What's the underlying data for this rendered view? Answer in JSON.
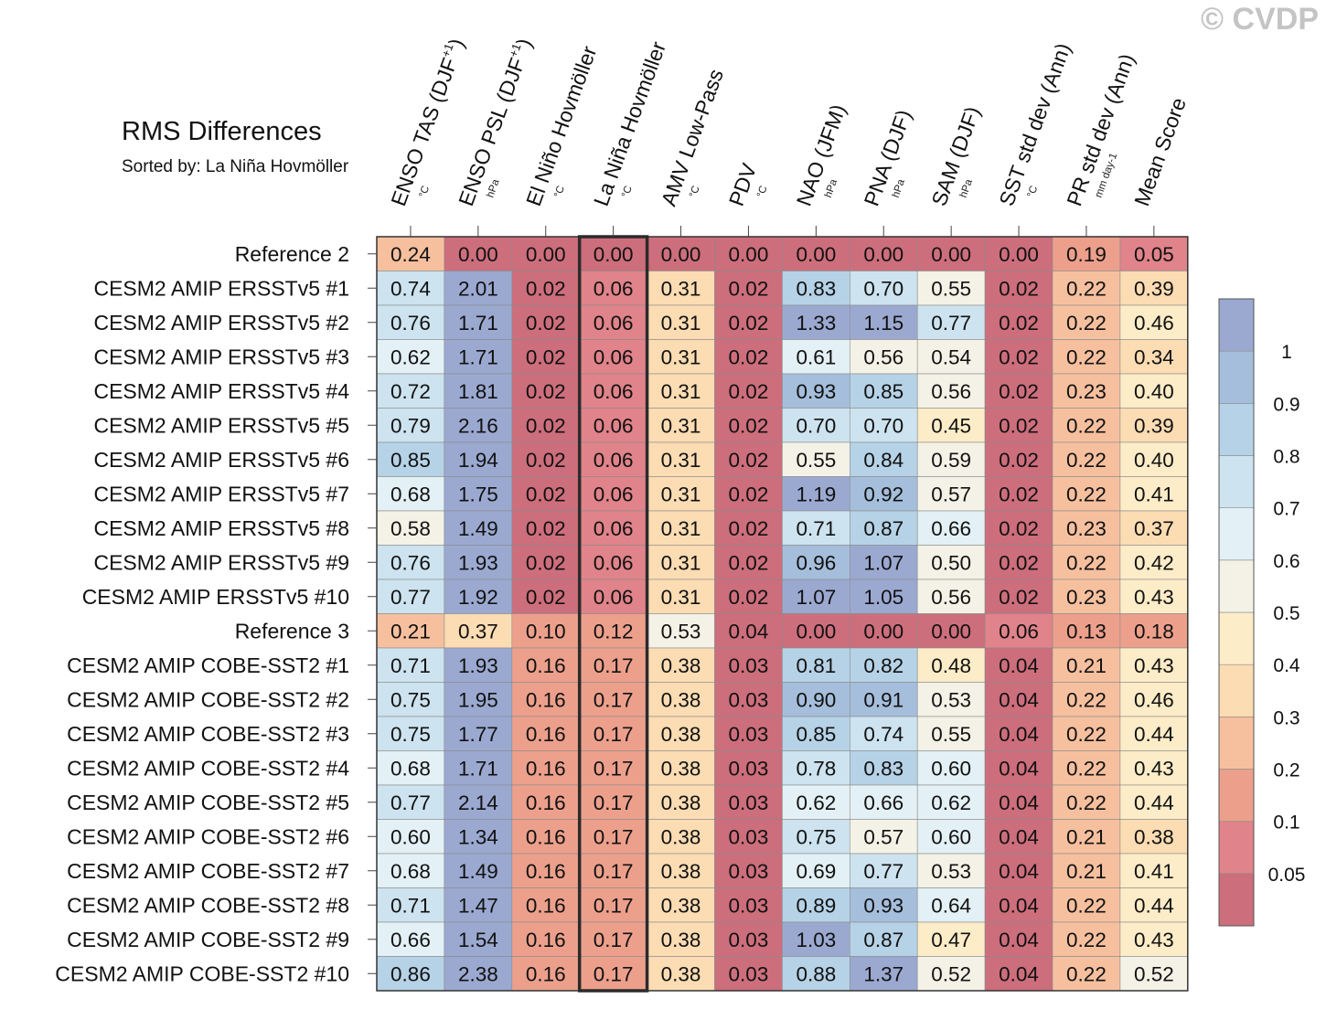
{
  "watermark": "© CVDP",
  "chart_data": {
    "type": "heatmap",
    "title": "RMS Differences",
    "subtitle": "Sorted by: La Niña Hovmöller",
    "highlight_column": 3,
    "columns": [
      {
        "label": "ENSO TAS (DJF",
        "sup": "+1",
        "close": ")",
        "unit": "°C"
      },
      {
        "label": "ENSO PSL (DJF",
        "sup": "+1",
        "close": ")",
        "unit": "hPa"
      },
      {
        "label": "El Niño Hovmöller",
        "sup": "",
        "close": "",
        "unit": "°C"
      },
      {
        "label": "La Niña Hovmöller",
        "sup": "",
        "close": "",
        "unit": "°C"
      },
      {
        "label": "AMV Low-Pass",
        "sup": "",
        "close": "",
        "unit": "°C"
      },
      {
        "label": "PDV",
        "sup": "",
        "close": "",
        "unit": "°C"
      },
      {
        "label": "NAO (JFM)",
        "sup": "",
        "close": "",
        "unit": "hPa"
      },
      {
        "label": "PNA (DJF)",
        "sup": "",
        "close": "",
        "unit": "hPa"
      },
      {
        "label": "SAM (DJF)",
        "sup": "",
        "close": "",
        "unit": "hPa"
      },
      {
        "label": "SST std dev (Ann)",
        "sup": "",
        "close": "",
        "unit": "°C"
      },
      {
        "label": "PR std dev (Ann)",
        "sup": "",
        "close": "",
        "unit": "mm day-1"
      },
      {
        "label": "Mean Score",
        "sup": "",
        "close": "",
        "unit": ""
      }
    ],
    "rows": [
      {
        "label": "Reference 2",
        "values": [
          "0.24",
          "0.00",
          "0.00",
          "0.00",
          "0.00",
          "0.00",
          "0.00",
          "0.00",
          "0.00",
          "0.00",
          "0.19",
          "0.05"
        ]
      },
      {
        "label": "CESM2 AMIP ERSSTv5 #1",
        "values": [
          "0.74",
          "2.01",
          "0.02",
          "0.06",
          "0.31",
          "0.02",
          "0.83",
          "0.70",
          "0.55",
          "0.02",
          "0.22",
          "0.39"
        ]
      },
      {
        "label": "CESM2 AMIP ERSSTv5 #2",
        "values": [
          "0.76",
          "1.71",
          "0.02",
          "0.06",
          "0.31",
          "0.02",
          "1.33",
          "1.15",
          "0.77",
          "0.02",
          "0.22",
          "0.46"
        ]
      },
      {
        "label": "CESM2 AMIP ERSSTv5 #3",
        "values": [
          "0.62",
          "1.71",
          "0.02",
          "0.06",
          "0.31",
          "0.02",
          "0.61",
          "0.56",
          "0.54",
          "0.02",
          "0.22",
          "0.34"
        ]
      },
      {
        "label": "CESM2 AMIP ERSSTv5 #4",
        "values": [
          "0.72",
          "1.81",
          "0.02",
          "0.06",
          "0.31",
          "0.02",
          "0.93",
          "0.85",
          "0.56",
          "0.02",
          "0.23",
          "0.40"
        ]
      },
      {
        "label": "CESM2 AMIP ERSSTv5 #5",
        "values": [
          "0.79",
          "2.16",
          "0.02",
          "0.06",
          "0.31",
          "0.02",
          "0.70",
          "0.70",
          "0.45",
          "0.02",
          "0.22",
          "0.39"
        ]
      },
      {
        "label": "CESM2 AMIP ERSSTv5 #6",
        "values": [
          "0.85",
          "1.94",
          "0.02",
          "0.06",
          "0.31",
          "0.02",
          "0.55",
          "0.84",
          "0.59",
          "0.02",
          "0.22",
          "0.40"
        ]
      },
      {
        "label": "CESM2 AMIP ERSSTv5 #7",
        "values": [
          "0.68",
          "1.75",
          "0.02",
          "0.06",
          "0.31",
          "0.02",
          "1.19",
          "0.92",
          "0.57",
          "0.02",
          "0.22",
          "0.41"
        ]
      },
      {
        "label": "CESM2 AMIP ERSSTv5 #8",
        "values": [
          "0.58",
          "1.49",
          "0.02",
          "0.06",
          "0.31",
          "0.02",
          "0.71",
          "0.87",
          "0.66",
          "0.02",
          "0.23",
          "0.37"
        ]
      },
      {
        "label": "CESM2 AMIP ERSSTv5 #9",
        "values": [
          "0.76",
          "1.93",
          "0.02",
          "0.06",
          "0.31",
          "0.02",
          "0.96",
          "1.07",
          "0.50",
          "0.02",
          "0.22",
          "0.42"
        ]
      },
      {
        "label": "CESM2 AMIP ERSSTv5 #10",
        "values": [
          "0.77",
          "1.92",
          "0.02",
          "0.06",
          "0.31",
          "0.02",
          "1.07",
          "1.05",
          "0.56",
          "0.02",
          "0.23",
          "0.43"
        ]
      },
      {
        "label": "Reference 3",
        "values": [
          "0.21",
          "0.37",
          "0.10",
          "0.12",
          "0.53",
          "0.04",
          "0.00",
          "0.00",
          "0.00",
          "0.06",
          "0.13",
          "0.18"
        ]
      },
      {
        "label": "CESM2 AMIP COBE-SST2 #1",
        "values": [
          "0.71",
          "1.93",
          "0.16",
          "0.17",
          "0.38",
          "0.03",
          "0.81",
          "0.82",
          "0.48",
          "0.04",
          "0.21",
          "0.43"
        ]
      },
      {
        "label": "CESM2 AMIP COBE-SST2 #2",
        "values": [
          "0.75",
          "1.95",
          "0.16",
          "0.17",
          "0.38",
          "0.03",
          "0.90",
          "0.91",
          "0.53",
          "0.04",
          "0.22",
          "0.46"
        ]
      },
      {
        "label": "CESM2 AMIP COBE-SST2 #3",
        "values": [
          "0.75",
          "1.77",
          "0.16",
          "0.17",
          "0.38",
          "0.03",
          "0.85",
          "0.74",
          "0.55",
          "0.04",
          "0.22",
          "0.44"
        ]
      },
      {
        "label": "CESM2 AMIP COBE-SST2 #4",
        "values": [
          "0.68",
          "1.71",
          "0.16",
          "0.17",
          "0.38",
          "0.03",
          "0.78",
          "0.83",
          "0.60",
          "0.04",
          "0.22",
          "0.43"
        ]
      },
      {
        "label": "CESM2 AMIP COBE-SST2 #5",
        "values": [
          "0.77",
          "2.14",
          "0.16",
          "0.17",
          "0.38",
          "0.03",
          "0.62",
          "0.66",
          "0.62",
          "0.04",
          "0.22",
          "0.44"
        ]
      },
      {
        "label": "CESM2 AMIP COBE-SST2 #6",
        "values": [
          "0.60",
          "1.34",
          "0.16",
          "0.17",
          "0.38",
          "0.03",
          "0.75",
          "0.57",
          "0.60",
          "0.04",
          "0.21",
          "0.38"
        ]
      },
      {
        "label": "CESM2 AMIP COBE-SST2 #7",
        "values": [
          "0.68",
          "1.49",
          "0.16",
          "0.17",
          "0.38",
          "0.03",
          "0.69",
          "0.77",
          "0.53",
          "0.04",
          "0.21",
          "0.41"
        ]
      },
      {
        "label": "CESM2 AMIP COBE-SST2 #8",
        "values": [
          "0.71",
          "1.47",
          "0.16",
          "0.17",
          "0.38",
          "0.03",
          "0.89",
          "0.93",
          "0.64",
          "0.04",
          "0.22",
          "0.44"
        ]
      },
      {
        "label": "CESM2 AMIP COBE-SST2 #9",
        "values": [
          "0.66",
          "1.54",
          "0.16",
          "0.17",
          "0.38",
          "0.03",
          "1.03",
          "0.87",
          "0.47",
          "0.04",
          "0.22",
          "0.43"
        ]
      },
      {
        "label": "CESM2 AMIP COBE-SST2 #10",
        "values": [
          "0.86",
          "2.38",
          "0.16",
          "0.17",
          "0.38",
          "0.03",
          "0.88",
          "1.37",
          "0.52",
          "0.04",
          "0.22",
          "0.52"
        ]
      }
    ],
    "colorbar": {
      "bounds": [
        0.05,
        0.1,
        0.2,
        0.3,
        0.4,
        0.5,
        0.6,
        0.7,
        0.8,
        0.9,
        1
      ],
      "labels": [
        "0.05",
        "0.1",
        "0.2",
        "0.3",
        "0.4",
        "0.5",
        "0.6",
        "0.7",
        "0.8",
        "0.9",
        "1"
      ],
      "colors": [
        "#cd6e7c",
        "#e0838a",
        "#eca08c",
        "#f6c09f",
        "#fbdcb3",
        "#fcecc7",
        "#f4f2e6",
        "#e3f0f5",
        "#cde3ef",
        "#b6d2e6",
        "#a5bedb",
        "#9ba9d1"
      ]
    }
  }
}
